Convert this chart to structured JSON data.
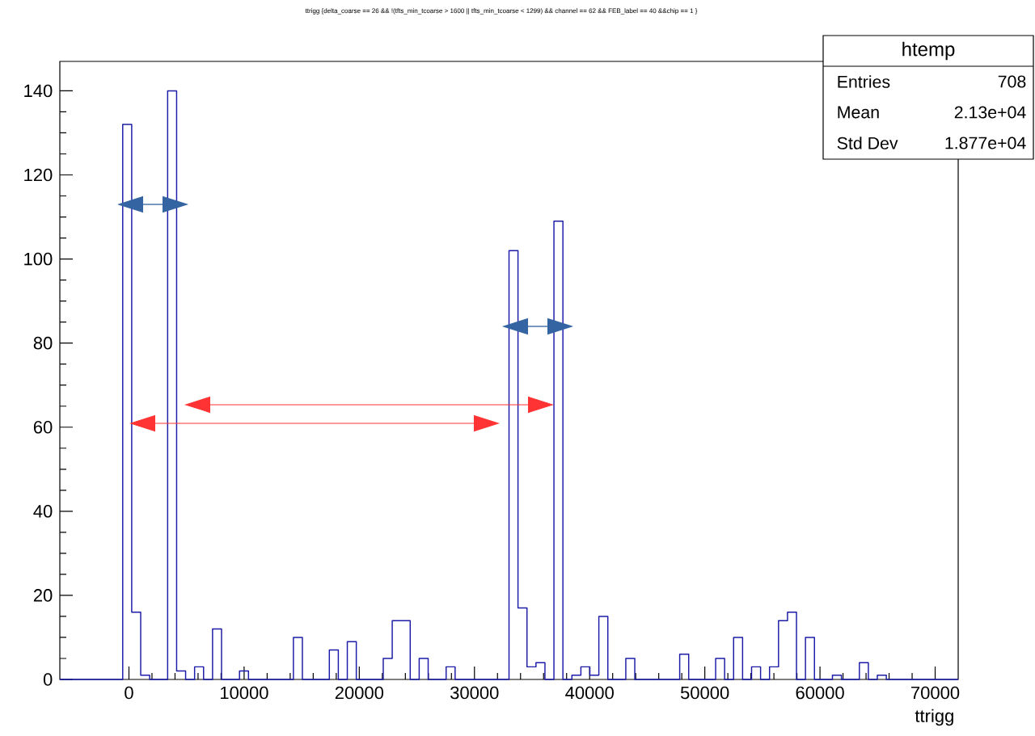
{
  "chart_data": {
    "type": "histogram",
    "title": "ttrigg {delta_coarse == 26 && !(tfts_min_tcoarse > 1600 || tfts_min_tcoarse < 1299) && channel == 62 && FEB_label == 40 &&chip == 1 }",
    "xlabel": "ttrigg",
    "bins": [
      -6000,
      -5220,
      -4440,
      -3660,
      -2880,
      -2100,
      -1320,
      -540,
      240,
      1020,
      1800,
      2580,
      3360,
      4140,
      4920,
      5700,
      6480,
      7260,
      8040,
      8820,
      9600,
      10380,
      11160,
      11940,
      12720,
      13500,
      14280,
      15060,
      15840,
      16620,
      17400,
      18180,
      18960,
      19740,
      20520,
      21300,
      22080,
      22860,
      23640,
      24420,
      25200,
      25980,
      26760,
      27540,
      28320,
      29100,
      29880,
      30660,
      31440,
      32220,
      33000,
      33780,
      34560,
      35340,
      36120,
      36900,
      37680,
      38460,
      39240,
      40020,
      40800,
      41580,
      42360,
      43140,
      43920,
      44700,
      45480,
      46260,
      47040,
      47820,
      48600,
      49380,
      50160,
      50940,
      51720,
      52500,
      53280,
      54060,
      54840,
      55620,
      56400,
      57180,
      57960,
      58740,
      59520,
      60300,
      61080,
      61860,
      62640,
      63420,
      64200,
      64980,
      65760,
      66540,
      67320,
      68100,
      68880,
      69660,
      70440,
      71220,
      72000
    ],
    "values": [
      0,
      0,
      0,
      0,
      0,
      0,
      0,
      132,
      16,
      1,
      0,
      0,
      140,
      2,
      0,
      3,
      0,
      12,
      0,
      0,
      2,
      0,
      0,
      0,
      0,
      0,
      10,
      0,
      0,
      0,
      7,
      0,
      9,
      0,
      0,
      0,
      5,
      14,
      14,
      0,
      5,
      0,
      0,
      3,
      0,
      0,
      0,
      0,
      0,
      0,
      102,
      17,
      3,
      4,
      0,
      109,
      0,
      1,
      3,
      1,
      15,
      0,
      0,
      5,
      0,
      0,
      0,
      0,
      0,
      6,
      0,
      0,
      0,
      5,
      0,
      10,
      0,
      3,
      0,
      3,
      14,
      16,
      0,
      10,
      0,
      0,
      1,
      0,
      0,
      4,
      0,
      1,
      0,
      0,
      0,
      0,
      0,
      0,
      0,
      0
    ],
    "color": "#1c1ca8",
    "xlim": [
      -6000,
      72000
    ],
    "ylim": [
      0,
      147
    ],
    "xticks": [
      0,
      10000,
      20000,
      30000,
      40000,
      50000,
      60000,
      70000
    ],
    "yticks": [
      0,
      20,
      40,
      60,
      80,
      100,
      120,
      140
    ],
    "grid": false,
    "annotations": [
      "htemp",
      "Entries",
      "708",
      "Mean",
      "2.13e+04",
      "Std Dev",
      "1.877e+04"
    ]
  }
}
